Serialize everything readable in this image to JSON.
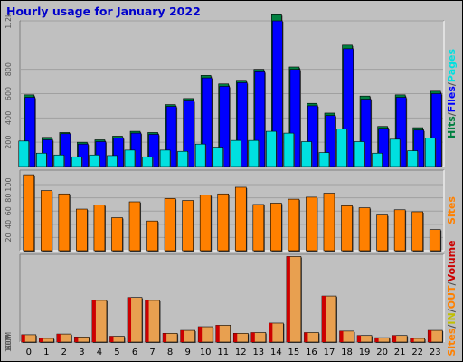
{
  "title": "Hourly usage for January 2022",
  "chart_data": [
    {
      "type": "bar",
      "categories": [
        "0",
        "1",
        "2",
        "3",
        "4",
        "5",
        "6",
        "7",
        "8",
        "9",
        "10",
        "11",
        "12",
        "13",
        "14",
        "15",
        "16",
        "17",
        "18",
        "19",
        "20",
        "21",
        "22",
        "23"
      ],
      "y_ticks": [
        "200",
        "400",
        "600",
        "800",
        "1.2k"
      ],
      "ylim": [
        0,
        1200
      ],
      "legend": [
        {
          "text": "Hits",
          "color": "#008040"
        },
        {
          "text": "/",
          "color": "#505050"
        },
        {
          "text": "Files",
          "color": "#0000ff"
        },
        {
          "text": "/",
          "color": "#505050"
        },
        {
          "text": "Pages",
          "color": "#00e0e0"
        }
      ],
      "series": [
        {
          "name": "Hits",
          "color": "#008040",
          "values": [
            590,
            240,
            280,
            200,
            220,
            250,
            290,
            280,
            510,
            560,
            750,
            680,
            710,
            800,
            1250,
            820,
            520,
            440,
            1000,
            580,
            330,
            590,
            320,
            620
          ]
        },
        {
          "name": "Files",
          "color": "#0000ff",
          "values": [
            570,
            220,
            270,
            185,
            205,
            235,
            275,
            265,
            495,
            540,
            730,
            660,
            690,
            780,
            1200,
            800,
            500,
            420,
            970,
            555,
            315,
            570,
            300,
            600
          ]
        },
        {
          "name": "Pages",
          "color": "#00e0e0",
          "values": [
            210,
            110,
            95,
            80,
            95,
            90,
            135,
            80,
            135,
            125,
            185,
            160,
            215,
            215,
            290,
            275,
            205,
            115,
            310,
            205,
            110,
            225,
            130,
            235
          ]
        }
      ]
    },
    {
      "type": "bar",
      "categories": [
        "0",
        "1",
        "2",
        "3",
        "4",
        "5",
        "6",
        "7",
        "8",
        "9",
        "10",
        "11",
        "12",
        "13",
        "14",
        "15",
        "16",
        "17",
        "18",
        "19",
        "20",
        "21",
        "22",
        "23"
      ],
      "y_ticks": [
        "20",
        "40",
        "60",
        "80",
        "100"
      ],
      "ylim": [
        0,
        122
      ],
      "legend": [
        {
          "text": "Sites",
          "color": "#ff8000"
        }
      ],
      "series": [
        {
          "name": "Sites",
          "color": "#ff8000",
          "values": [
            115,
            91,
            86,
            63,
            69,
            50,
            74,
            45,
            79,
            76,
            84,
            86,
            96,
            70,
            72,
            78,
            81,
            87,
            68,
            65,
            54,
            62,
            59,
            32
          ]
        }
      ]
    },
    {
      "type": "bar",
      "categories": [
        "0",
        "1",
        "2",
        "3",
        "4",
        "5",
        "6",
        "7",
        "8",
        "9",
        "10",
        "11",
        "12",
        "13",
        "14",
        "15",
        "16",
        "17",
        "18",
        "19",
        "20",
        "21",
        "22",
        "23"
      ],
      "y_ticks": [
        "20M",
        "60M",
        "100M"
      ],
      "ylim": [
        0,
        120
      ],
      "legend": [
        {
          "text": "Sites",
          "color": "#ff8000"
        },
        {
          "text": "/",
          "color": "#505050"
        },
        {
          "text": "IN",
          "color": "#c0c000"
        },
        {
          "text": "/",
          "color": "#505050"
        },
        {
          "text": "OUT",
          "color": "#ff8000"
        },
        {
          "text": "/",
          "color": "#505050"
        },
        {
          "text": "Volume",
          "color": "#cc0000"
        }
      ],
      "series": [
        {
          "name": "Volume",
          "color": "#cc0000",
          "values": [
            10,
            5,
            11,
            7,
            57,
            8,
            61,
            57,
            12,
            16,
            21,
            23,
            12,
            13,
            26,
            117,
            13,
            63,
            15,
            9,
            6,
            9,
            5,
            16
          ]
        }
      ]
    }
  ]
}
